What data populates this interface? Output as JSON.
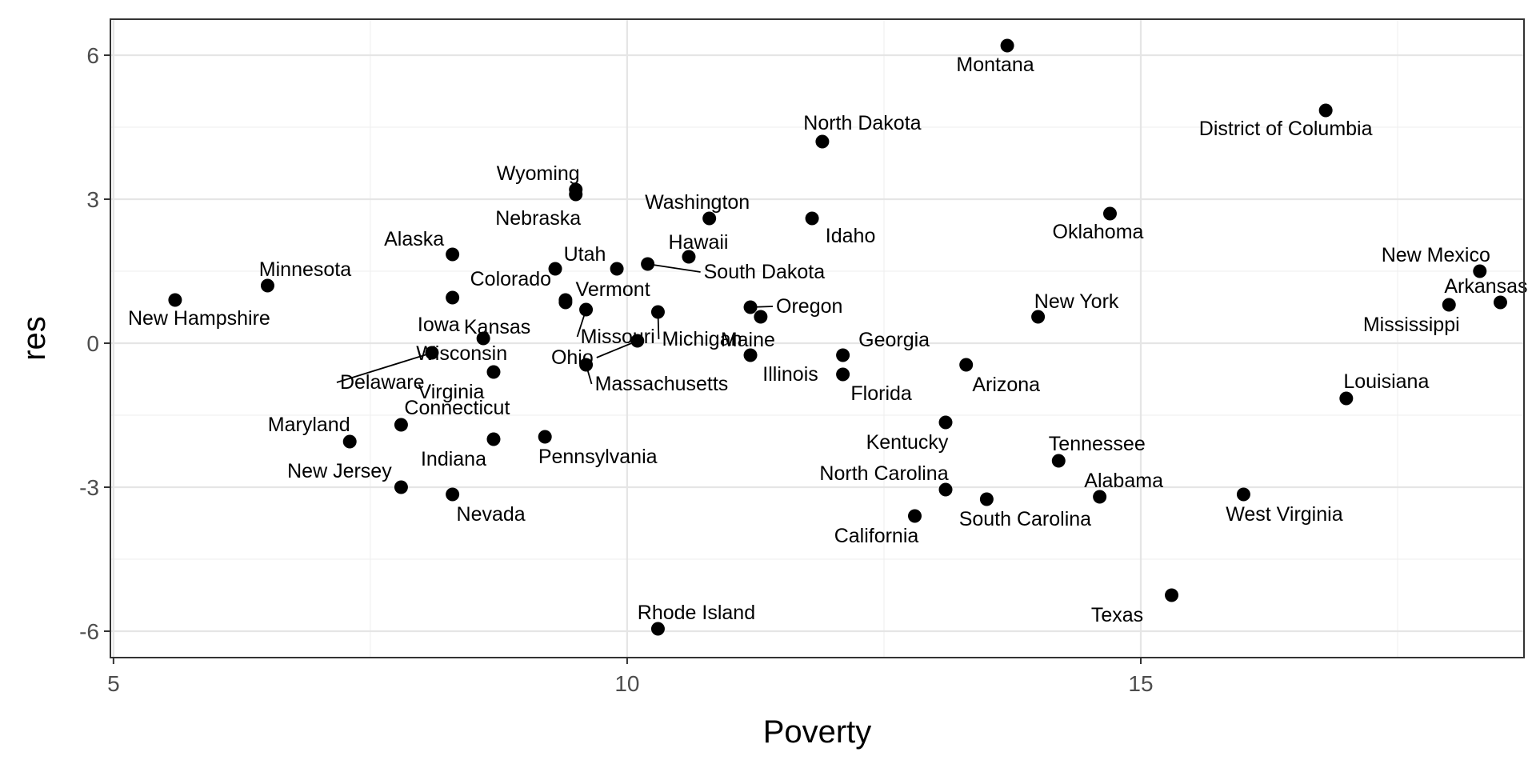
{
  "chart_data": {
    "type": "scatter",
    "xlabel": "Poverty",
    "ylabel": "res",
    "xlim": [
      4.97,
      18.73
    ],
    "ylim": [
      -6.55,
      6.75
    ],
    "x_ticks": [
      5,
      10,
      15
    ],
    "y_ticks": [
      6,
      3,
      0,
      -3,
      -6
    ],
    "x_tick_labels": [
      "5",
      "10",
      "15"
    ],
    "y_tick_labels": [
      "6",
      "3",
      "0",
      "-3",
      "-6"
    ],
    "grid": true,
    "legend": "none",
    "points": [
      {
        "label": "Montana",
        "x": 13.7,
        "y": 6.2
      },
      {
        "label": "District of Columbia",
        "x": 16.8,
        "y": 4.85
      },
      {
        "label": "North Dakota",
        "x": 11.9,
        "y": 4.2
      },
      {
        "label": "Wyoming",
        "x": 9.5,
        "y": 3.2
      },
      {
        "label": "Nebraska",
        "x": 9.5,
        "y": 3.1
      },
      {
        "label": "Washington",
        "x": 10.8,
        "y": 2.6
      },
      {
        "label": "Idaho",
        "x": 11.8,
        "y": 2.6
      },
      {
        "label": "Oklahoma",
        "x": 14.7,
        "y": 2.7
      },
      {
        "label": "Alaska",
        "x": 8.3,
        "y": 1.85
      },
      {
        "label": "Hawaii",
        "x": 10.6,
        "y": 1.8
      },
      {
        "label": "Utah",
        "x": 9.3,
        "y": 1.55
      },
      {
        "label": "Vermont",
        "x": 9.9,
        "y": 1.55
      },
      {
        "label": "South Dakota",
        "x": 10.2,
        "y": 1.65
      },
      {
        "label": "Minnesota",
        "x": 6.5,
        "y": 1.2
      },
      {
        "label": "New Hampshire",
        "x": 5.6,
        "y": 0.9
      },
      {
        "label": "Colorado",
        "x": 8.3,
        "y": 0.95
      },
      {
        "label": "Iowa",
        "x": 9.4,
        "y": 0.9
      },
      {
        "label": "Kansas",
        "x": 9.4,
        "y": 0.85
      },
      {
        "label": "Missouri",
        "x": 9.6,
        "y": 0.7
      },
      {
        "label": "Michigan",
        "x": 10.3,
        "y": 0.65
      },
      {
        "label": "Oregon",
        "x": 11.2,
        "y": 0.75
      },
      {
        "label": "Maine",
        "x": 11.3,
        "y": 0.55
      },
      {
        "label": "New York",
        "x": 14.0,
        "y": 0.55
      },
      {
        "label": "New Mexico",
        "x": 18.3,
        "y": 1.5
      },
      {
        "label": "Arkansas",
        "x": 18.5,
        "y": 0.85
      },
      {
        "label": "Mississippi",
        "x": 18.0,
        "y": 0.8
      },
      {
        "label": "Wisconsin",
        "x": 8.6,
        "y": 0.1
      },
      {
        "label": "Delaware",
        "x": 8.1,
        "y": -0.2
      },
      {
        "label": "Ohio",
        "x": 10.1,
        "y": 0.05
      },
      {
        "label": "Massachusetts",
        "x": 9.6,
        "y": -0.45
      },
      {
        "label": "Virginia",
        "x": 8.7,
        "y": -0.6
      },
      {
        "label": "Illinois",
        "x": 11.2,
        "y": -0.25
      },
      {
        "label": "Georgia",
        "x": 12.1,
        "y": -0.25
      },
      {
        "label": "Florida",
        "x": 12.1,
        "y": -0.65
      },
      {
        "label": "Arizona",
        "x": 13.3,
        "y": -0.45
      },
      {
        "label": "Louisiana",
        "x": 17.0,
        "y": -1.15
      },
      {
        "label": "Maryland",
        "x": 7.3,
        "y": -2.05
      },
      {
        "label": "Connecticut",
        "x": 7.8,
        "y": -1.7
      },
      {
        "label": "Indiana",
        "x": 8.7,
        "y": -2.0
      },
      {
        "label": "Pennsylvania",
        "x": 9.2,
        "y": -1.95
      },
      {
        "label": "Kentucky",
        "x": 13.1,
        "y": -1.65
      },
      {
        "label": "Tennessee",
        "x": 14.2,
        "y": -2.45
      },
      {
        "label": "New Jersey",
        "x": 7.8,
        "y": -3.0
      },
      {
        "label": "Nevada",
        "x": 8.3,
        "y": -3.15
      },
      {
        "label": "North Carolina",
        "x": 13.1,
        "y": -3.05
      },
      {
        "label": "South Carolina",
        "x": 13.5,
        "y": -3.25
      },
      {
        "label": "Alabama",
        "x": 14.6,
        "y": -3.2
      },
      {
        "label": "West Virginia",
        "x": 16.0,
        "y": -3.15
      },
      {
        "label": "California",
        "x": 12.8,
        "y": -3.6
      },
      {
        "label": "Texas",
        "x": 15.3,
        "y": -5.25
      },
      {
        "label": "Rhode Island",
        "x": 10.3,
        "y": -5.95
      }
    ]
  }
}
